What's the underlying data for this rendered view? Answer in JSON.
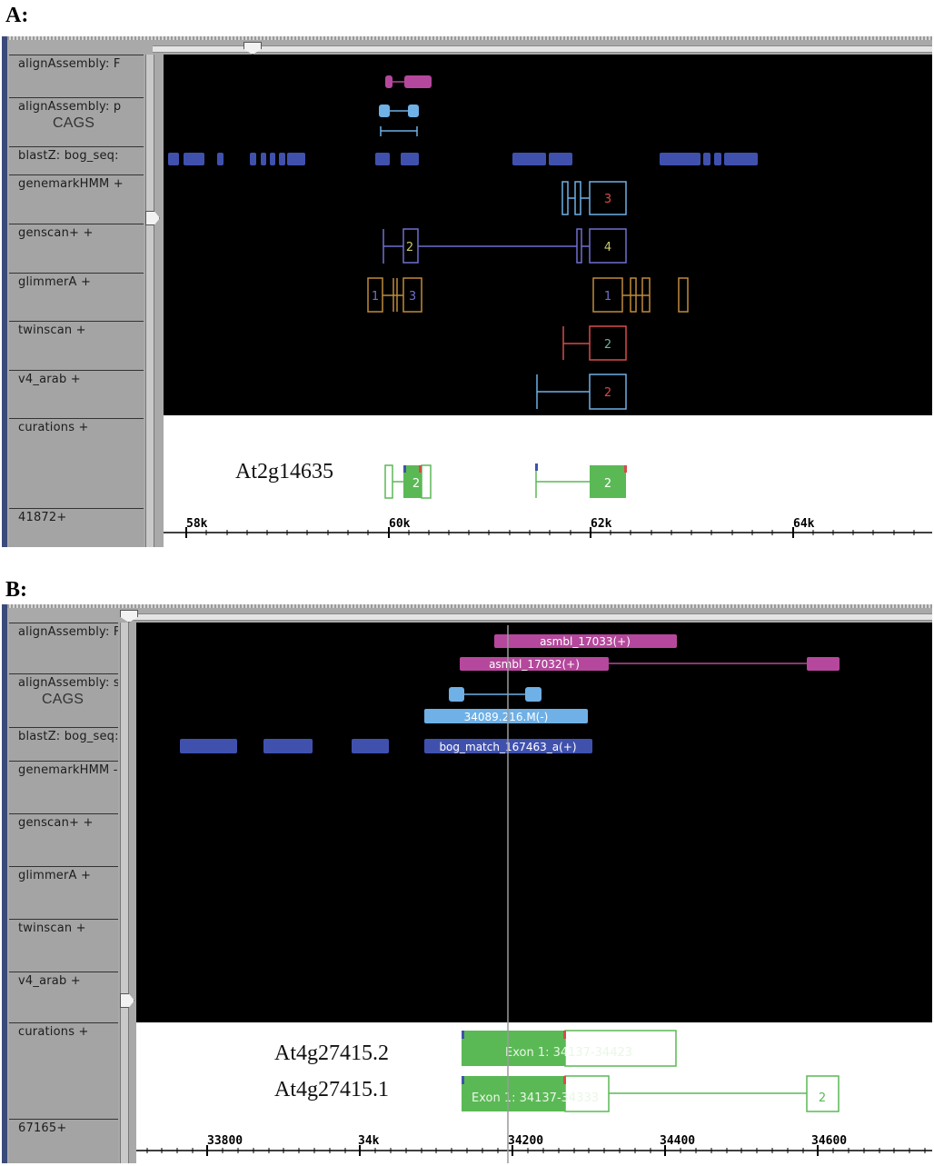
{
  "panel_a": {
    "label": "A:",
    "tracks": [
      "alignAssembly: F",
      "alignAssembly: p",
      "blastZ: bog_seq:",
      "genemarkHMM +",
      "genscan+ +",
      "glimmerA +",
      "twinscan +",
      "v4_arab +",
      "curations +",
      "41872+"
    ],
    "cags": "CAGS",
    "exon_numbers": {
      "genemark": "3",
      "genscan_1": "2",
      "genscan_2": "4",
      "glimmer_1": "1",
      "glimmer_2": "3",
      "glimmer_3": "1",
      "twinscan": "2",
      "v4_arab": "2",
      "curation_1": "2",
      "curation_2": "2"
    },
    "curation_label": "At2g14635",
    "ruler": [
      "58k",
      "60k",
      "62k",
      "64k"
    ]
  },
  "panel_b": {
    "label": "B:",
    "tracks": [
      "alignAssembly: F",
      "alignAssembly: s",
      "blastZ: bog_seq:",
      "genemarkHMM -",
      "genscan+ +",
      "glimmerA +",
      "twinscan +",
      "v4_arab +",
      "curations +",
      "67165+"
    ],
    "cags": "CAGS",
    "features": {
      "asmbl_1": "asmbl_17033(+)",
      "asmbl_2": "asmbl_17032(+)",
      "cags": "34089.216.M(-)",
      "bog": "bog_match_167463_a(+)"
    },
    "curation_labels": [
      "At4g27415.2",
      "At4g27415.1"
    ],
    "exons": {
      "row1": "Exon 1: 34137-34423",
      "row2": "Exon 1: 34137-34333",
      "row2_ex2": "2"
    },
    "ruler": [
      "33800",
      "34k",
      "34200",
      "34400",
      "34600"
    ]
  },
  "colors": {
    "magenta": "#b5489c",
    "light_blue": "#6fb0e6",
    "blastz_blue": "#4051ad",
    "green": "#5ab955",
    "red": "#d94a4a",
    "orange": "#c08a3a",
    "purple": "#6f6fd0"
  }
}
